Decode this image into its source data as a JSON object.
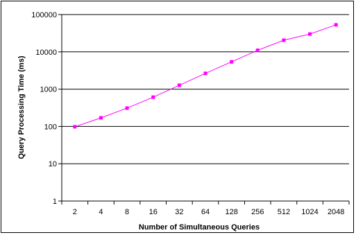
{
  "chart_data": {
    "type": "line",
    "title": "",
    "xlabel": "Number of Simultaneous Queries",
    "ylabel": "Query Processing Time (ms)",
    "y_scale": "log",
    "ylim": [
      1,
      100000
    ],
    "grid": "horizontal major gridlines",
    "legend": "none",
    "categories": [
      "2",
      "4",
      "8",
      "16",
      "32",
      "64",
      "128",
      "256",
      "512",
      "1024",
      "2048"
    ],
    "y_ticks": [
      "1",
      "10",
      "100",
      "1000",
      "10000",
      "100000"
    ],
    "series": [
      {
        "values": [
          98,
          170,
          310,
          610,
          1270,
          2650,
          5400,
          11000,
          20500,
          30000,
          53000
        ],
        "color": "#ff00ff",
        "marker": "square"
      }
    ]
  }
}
